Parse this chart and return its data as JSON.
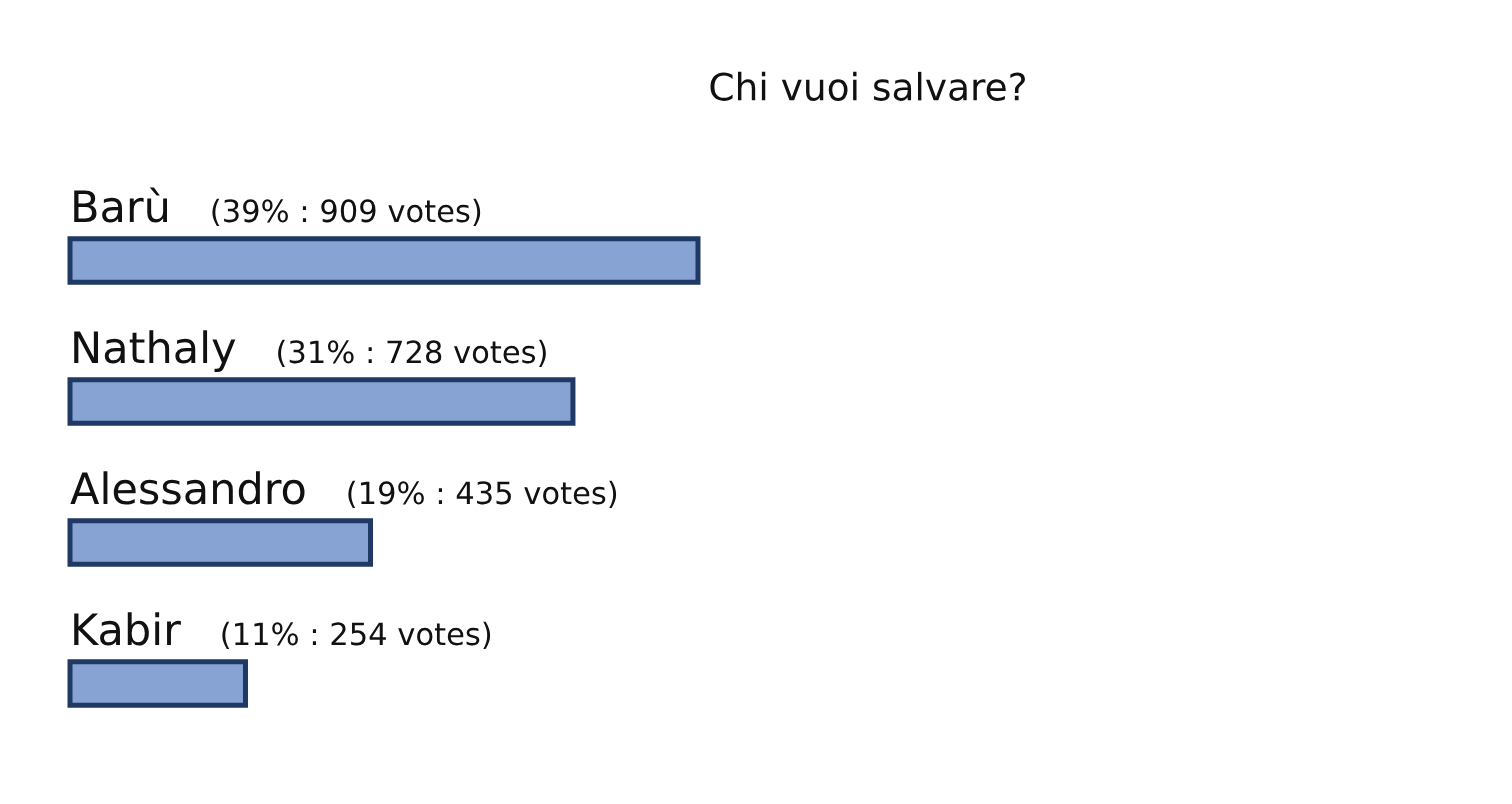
{
  "chart_data": {
    "type": "bar",
    "orientation": "horizontal",
    "title": "Chi vuoi salvare?",
    "categories": [
      "Barù",
      "Nathaly",
      "Alessandro",
      "Kabir"
    ],
    "values": [
      909,
      728,
      435,
      254
    ],
    "value_labels": [
      "(39% : 909 votes)",
      "(31% : 728 votes)",
      "(19% : 435 votes)",
      "(11% : 254 votes)"
    ],
    "color": "#86a3d4",
    "tick_labels": false
  }
}
